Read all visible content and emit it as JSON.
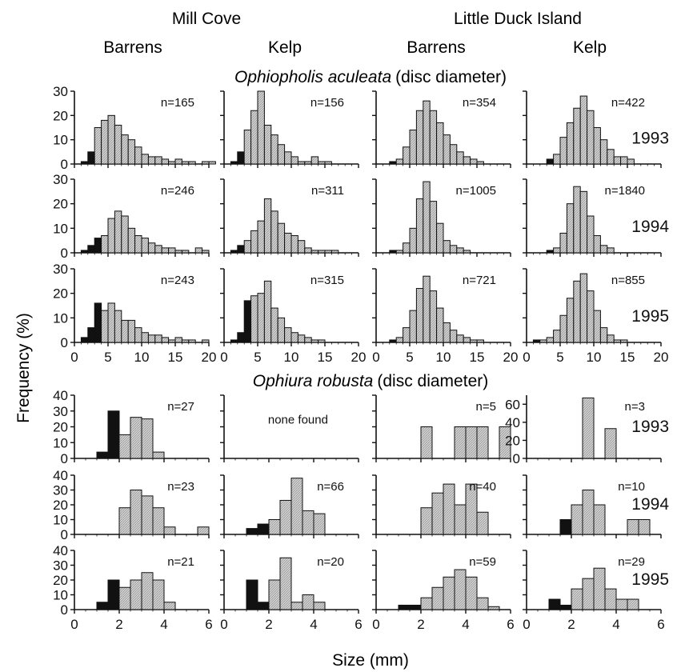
{
  "header": {
    "site_left": "Mill Cove",
    "site_right": "Little Duck Island",
    "habitats": [
      "Barrens",
      "Kelp",
      "Barrens",
      "Kelp"
    ],
    "species_a": {
      "italic": "Ophiopholis aculeata",
      "suffix": "(disc diameter)"
    },
    "species_b": {
      "italic": "Ophiura robusta",
      "suffix": "(disc diameter)"
    },
    "ylabel": "Frequency (%)",
    "xlabel": "Size (mm)",
    "none_found": "none found"
  },
  "colors": {
    "dark_bar": "#111111",
    "light_bar": "#c9c9c9",
    "axis": "#111111"
  },
  "chart_data": {
    "type": "bar",
    "title": "",
    "xlabel": "Size (mm)",
    "ylabel": "Frequency (%)",
    "grid": false,
    "species": [
      {
        "name": "Ophiopholis aculeata (disc diameter)",
        "bin_width": 1,
        "xlim": [
          0,
          20
        ],
        "xticks": [
          0,
          5,
          10,
          15,
          20
        ],
        "ylim": [
          0,
          30
        ],
        "yticks": [
          0,
          10,
          20,
          30
        ],
        "years": [
          {
            "year": "1993",
            "panels": [
              {
                "site": "Mill Cove",
                "habitat": "Barrens",
                "n": "n=165",
                "dark_bins": 2,
                "start": 1,
                "values": [
                  1,
                  5,
                  15,
                  18,
                  20,
                  16,
                  12,
                  10,
                  7,
                  4,
                  3,
                  3,
                  2,
                  1,
                  2,
                  1,
                  1,
                  0,
                  1,
                  1
                ]
              },
              {
                "site": "Mill Cove",
                "habitat": "Kelp",
                "n": "n=156",
                "dark_bins": 2,
                "start": 1,
                "values": [
                  1,
                  5,
                  14,
                  22,
                  32,
                  16,
                  12,
                  8,
                  5,
                  3,
                  1,
                  1,
                  3,
                  1,
                  1
                ]
              },
              {
                "site": "Little Duck Island",
                "habitat": "Barrens",
                "n": "n=354",
                "dark_bins": 1,
                "start": 2,
                "values": [
                  1,
                  2,
                  7,
                  14,
                  22,
                  26,
                  22,
                  17,
                  12,
                  8,
                  5,
                  3,
                  2,
                  1
                ]
              },
              {
                "site": "Little Duck Island",
                "habitat": "Kelp",
                "n": "n=422",
                "dark_bins": 1,
                "start": 3,
                "values": [
                  2,
                  4,
                  11,
                  17,
                  23,
                  28,
                  22,
                  15,
                  10,
                  6,
                  3,
                  3,
                  2
                ]
              }
            ]
          },
          {
            "year": "1994",
            "panels": [
              {
                "site": "Mill Cove",
                "habitat": "Barrens",
                "n": "n=246",
                "dark_bins": 3,
                "start": 1,
                "values": [
                  1,
                  3,
                  6,
                  7,
                  14,
                  17,
                  15,
                  10,
                  7,
                  6,
                  4,
                  3,
                  2,
                  2,
                  1,
                  1,
                  0,
                  2,
                  1
                ]
              },
              {
                "site": "Mill Cove",
                "habitat": "Kelp",
                "n": "n=311",
                "dark_bins": 2,
                "start": 1,
                "values": [
                  1,
                  3,
                  5,
                  9,
                  13,
                  22,
                  17,
                  12,
                  8,
                  7,
                  5,
                  2,
                  1,
                  1,
                  1,
                  1
                ]
              },
              {
                "site": "Little Duck Island",
                "habitat": "Barrens",
                "n": "n=1005",
                "dark_bins": 1,
                "start": 2,
                "values": [
                  1,
                  1,
                  4,
                  10,
                  22,
                  29,
                  21,
                  12,
                  5,
                  3,
                  2,
                  1
                ]
              },
              {
                "site": "Little Duck Island",
                "habitat": "Kelp",
                "n": "n=1840",
                "dark_bins": 1,
                "start": 3,
                "values": [
                  1,
                  2,
                  8,
                  20,
                  27,
                  25,
                  15,
                  7,
                  3,
                  2
                ]
              }
            ]
          },
          {
            "year": "1995",
            "panels": [
              {
                "site": "Mill Cove",
                "habitat": "Barrens",
                "n": "n=243",
                "dark_bins": 3,
                "start": 1,
                "values": [
                  2,
                  6,
                  16,
                  13,
                  16,
                  13,
                  9,
                  9,
                  6,
                  4,
                  3,
                  3,
                  2,
                  1,
                  2,
                  1,
                  1,
                  0,
                  1
                ]
              },
              {
                "site": "Mill Cove",
                "habitat": "Kelp",
                "n": "n=315",
                "dark_bins": 3,
                "start": 1,
                "values": [
                  1,
                  4,
                  17,
                  19,
                  20,
                  25,
                  14,
                  10,
                  6,
                  4,
                  3,
                  2,
                  1,
                  1
                ]
              },
              {
                "site": "Little Duck Island",
                "habitat": "Barrens",
                "n": "n=721",
                "dark_bins": 1,
                "start": 2,
                "values": [
                  1,
                  2,
                  6,
                  13,
                  22,
                  27,
                  21,
                  14,
                  8,
                  5,
                  3,
                  2,
                  1,
                  1
                ]
              },
              {
                "site": "Little Duck Island",
                "habitat": "Kelp",
                "n": "n=855",
                "dark_bins": 1,
                "start": 1,
                "values": [
                  1,
                  1,
                  2,
                  5,
                  11,
                  18,
                  25,
                  28,
                  21,
                  13,
                  6,
                  3,
                  1,
                  1
                ]
              }
            ]
          }
        ]
      },
      {
        "name": "Ophiura robusta (disc diameter)",
        "bin_width": 0.5,
        "xlim": [
          0,
          6
        ],
        "xticks": [
          0,
          2,
          4,
          6
        ],
        "ylim": [
          0,
          40
        ],
        "yticks": [
          0,
          10,
          20,
          30,
          40
        ],
        "years": [
          {
            "year": "1993",
            "panels": [
              {
                "site": "Mill Cove",
                "habitat": "Barrens",
                "n": "n=27",
                "dark_bins": 2,
                "start": 1.0,
                "values": [
                  4,
                  30,
                  15,
                  26,
                  25,
                  4
                ]
              },
              {
                "site": "Mill Cove",
                "habitat": "Kelp",
                "n": "",
                "none_found": true,
                "dark_bins": 0,
                "start": 0,
                "values": []
              },
              {
                "site": "Little Duck Island",
                "habitat": "Barrens",
                "n": "n=5",
                "dark_bins": 0,
                "start": 2.0,
                "values": [
                  20,
                  0,
                  0,
                  20,
                  20,
                  20,
                  0,
                  20
                ]
              },
              {
                "site": "Little Duck Island",
                "habitat": "Kelp",
                "n": "n=3",
                "ylim": [
                  0,
                  70
                ],
                "yticks": [
                  0,
                  20,
                  40,
                  60
                ],
                "dark_bins": 0,
                "start": 2.5,
                "values": [
                  67,
                  0,
                  33
                ]
              }
            ]
          },
          {
            "year": "1994",
            "panels": [
              {
                "site": "Mill Cove",
                "habitat": "Barrens",
                "n": "n=23",
                "dark_bins": 0,
                "start": 2.0,
                "values": [
                  18,
                  30,
                  26,
                  18,
                  5,
                  0,
                  0,
                  5
                ]
              },
              {
                "site": "Mill Cove",
                "habitat": "Kelp",
                "n": "n=66",
                "dark_bins": 2,
                "start": 1.0,
                "values": [
                  4,
                  7,
                  10,
                  23,
                  38,
                  16,
                  14
                ]
              },
              {
                "site": "Little Duck Island",
                "habitat": "Barrens",
                "n": "n=40",
                "dark_bins": 0,
                "start": 2.0,
                "values": [
                  18,
                  28,
                  34,
                  20,
                  34,
                  15
                ]
              },
              {
                "site": "Little Duck Island",
                "habitat": "Kelp",
                "n": "n=10",
                "dark_bins": 1,
                "start": 1.5,
                "values": [
                  10,
                  20,
                  30,
                  20,
                  0,
                  0,
                  10,
                  10
                ]
              }
            ]
          },
          {
            "year": "1995",
            "panels": [
              {
                "site": "Mill Cove",
                "habitat": "Barrens",
                "n": "n=21",
                "dark_bins": 2,
                "start": 1.0,
                "values": [
                  5,
                  20,
                  15,
                  20,
                  25,
                  20,
                  5
                ]
              },
              {
                "site": "Mill Cove",
                "habitat": "Kelp",
                "n": "n=20",
                "dark_bins": 2,
                "start": 1.0,
                "values": [
                  20,
                  5,
                  20,
                  35,
                  5,
                  10,
                  5
                ]
              },
              {
                "site": "Little Duck Island",
                "habitat": "Barrens",
                "n": "n=59",
                "dark_bins": 2,
                "start": 1.0,
                "values": [
                  3,
                  3,
                  8,
                  15,
                  22,
                  27,
                  22,
                  8,
                  2
                ]
              },
              {
                "site": "Little Duck Island",
                "habitat": "Kelp",
                "n": "n=29",
                "dark_bins": 2,
                "start": 1.0,
                "values": [
                  7,
                  3,
                  14,
                  21,
                  28,
                  14,
                  7,
                  7
                ]
              }
            ]
          }
        ]
      }
    ]
  }
}
